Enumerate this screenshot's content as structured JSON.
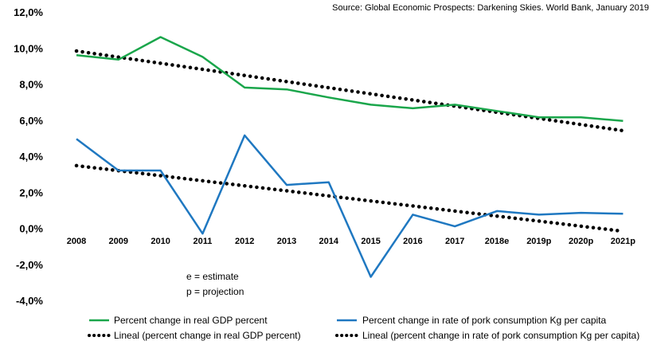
{
  "chart_data": {
    "type": "line",
    "source": "Source: Global Economic Prospects: Darkening Skies. World Bank, January 2019",
    "categories": [
      "2008",
      "2009",
      "2010",
      "2011",
      "2012",
      "2013",
      "2014",
      "2015",
      "2016",
      "2017",
      "2018e",
      "2019p",
      "2020p",
      "2021p"
    ],
    "ylim": [
      -4,
      12
    ],
    "yticks": [
      -4,
      -2,
      0,
      2,
      4,
      6,
      8,
      10,
      12
    ],
    "ytick_labels": [
      "-4,0%",
      "-2,0%",
      "0,0%",
      "2,0%",
      "4,0%",
      "6,0%",
      "8,0%",
      "10,0%",
      "12,0%"
    ],
    "series": [
      {
        "name": "Percent change in real GDP percent",
        "color": "#1aa64b",
        "style": "solid",
        "values": [
          9.65,
          9.4,
          10.65,
          9.55,
          7.85,
          7.75,
          7.3,
          6.9,
          6.7,
          6.9,
          6.55,
          6.2,
          6.2,
          6.0
        ]
      },
      {
        "name": "Percent change in rate of pork consumption Kg per capita",
        "color": "#1f78c1",
        "style": "solid",
        "values": [
          5.0,
          3.25,
          3.25,
          -0.25,
          5.2,
          2.45,
          2.6,
          -2.65,
          0.8,
          0.15,
          1.0,
          0.8,
          0.9,
          0.85
        ]
      },
      {
        "name": "Lineal (percent change in real GDP percent)",
        "color": "#000000",
        "style": "dotted",
        "values": [
          9.88,
          9.54,
          9.2,
          8.86,
          8.52,
          8.18,
          7.84,
          7.5,
          7.16,
          6.82,
          6.48,
          6.14,
          5.8,
          5.46
        ]
      },
      {
        "name": "Lineal (percent change in rate of pork consumption Kg per capita)",
        "color": "#000000",
        "style": "dotted",
        "values": [
          3.52,
          3.24,
          2.96,
          2.68,
          2.4,
          2.12,
          1.84,
          1.56,
          1.28,
          1.0,
          0.72,
          0.44,
          0.16,
          -0.12
        ]
      }
    ],
    "annotations": [
      "e = estimate",
      "p = projection"
    ],
    "legend": {
      "placement": "bottom"
    }
  }
}
